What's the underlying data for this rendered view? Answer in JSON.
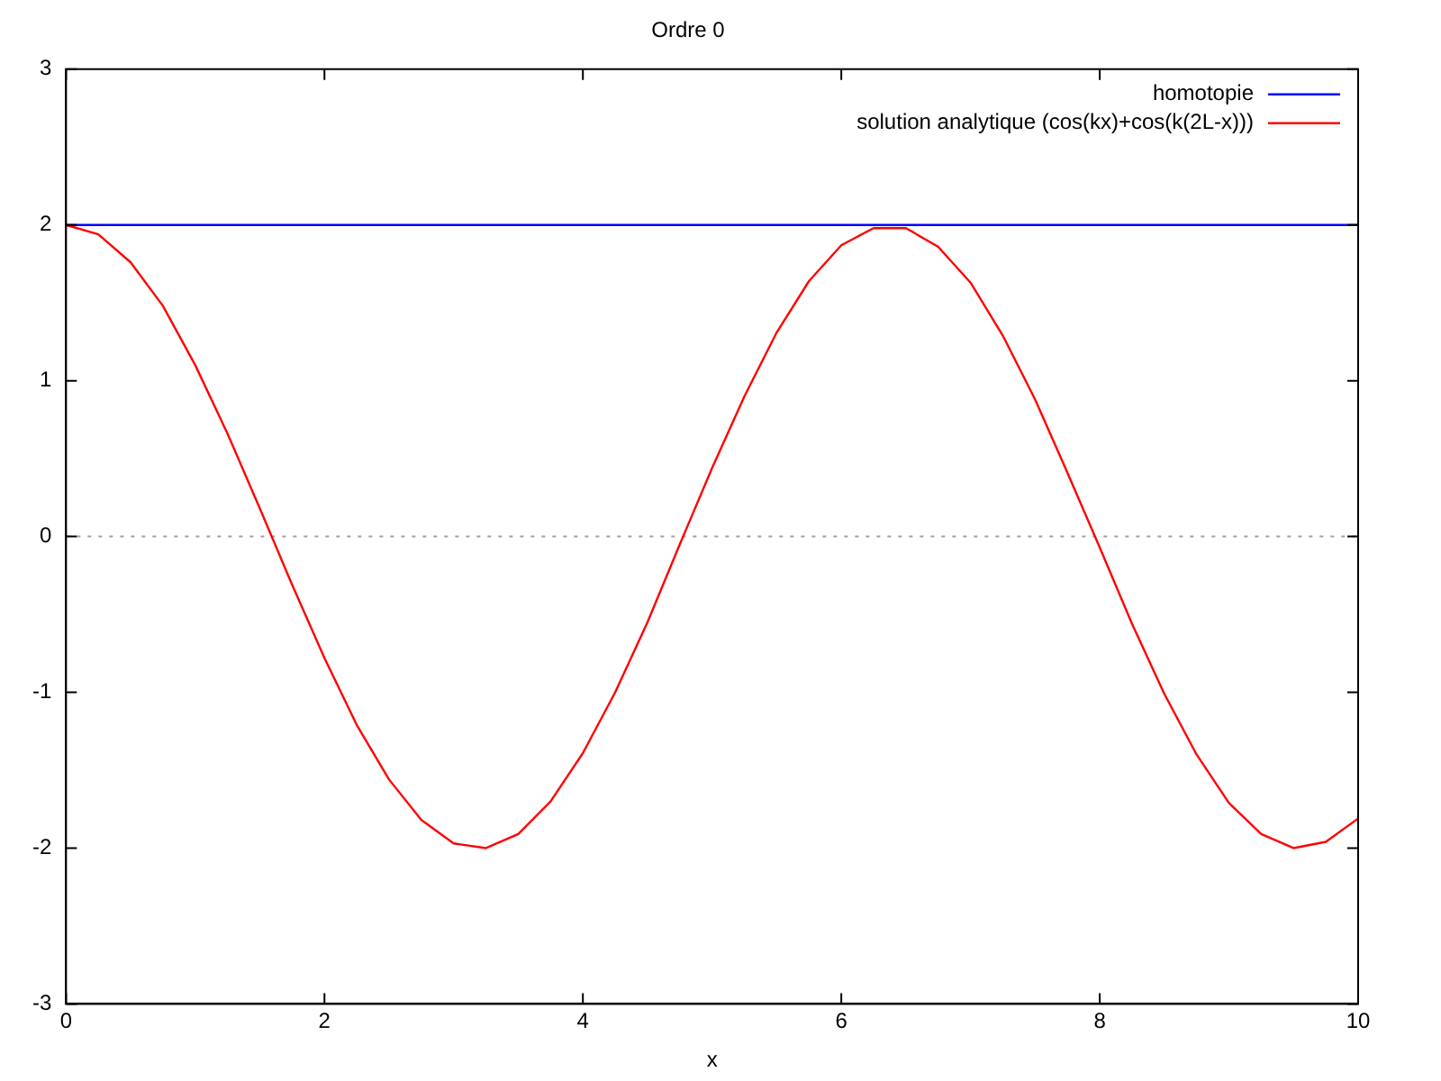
{
  "chart_data": {
    "type": "line",
    "title": "Ordre 0",
    "xlabel": "x",
    "xlim": [
      0,
      10
    ],
    "xticks": [
      0,
      2,
      4,
      6,
      8,
      10
    ],
    "ylim": [
      -3,
      3
    ],
    "yticks": [
      -3,
      -2,
      -1,
      0,
      1,
      2,
      3
    ],
    "grid": false,
    "legend": "top right",
    "marker": "none",
    "line_style": "solid",
    "ref_lines": [
      {
        "axis": "y",
        "value": 0,
        "color": "#a0a0a0",
        "line_style": "dotted"
      }
    ],
    "series": [
      {
        "name": "homotopie",
        "color": "#0000ff",
        "x": [
          0,
          10
        ],
        "values": [
          2,
          2
        ]
      },
      {
        "name": "solution analytique (cos(kx)+cos(k(2L-x)))",
        "color": "#ff0000",
        "x": [
          0,
          0.25,
          0.5,
          0.75,
          1,
          1.25,
          1.5,
          1.75,
          2,
          2.25,
          2.5,
          2.75,
          3,
          3.25,
          3.5,
          3.75,
          4,
          4.25,
          4.5,
          4.75,
          5,
          5.25,
          5.5,
          5.75,
          6,
          6.25,
          6.5,
          6.75,
          7,
          7.25,
          7.5,
          7.75,
          8,
          8.25,
          8.5,
          8.75,
          9,
          9.25,
          9.5,
          9.75,
          10
        ],
        "values": [
          2,
          1.94,
          1.76,
          1.48,
          1.1,
          0.66,
          0.18,
          -0.31,
          -0.78,
          -1.21,
          -1.56,
          -1.82,
          -1.97,
          -2,
          -1.91,
          -1.7,
          -1.39,
          -1,
          -0.55,
          -0.05,
          0.44,
          0.9,
          1.31,
          1.64,
          1.87,
          1.98,
          1.98,
          1.86,
          1.63,
          1.29,
          0.88,
          0.41,
          -0.07,
          -0.56,
          -1.01,
          -1.4,
          -1.71,
          -1.91,
          -2,
          -1.96,
          -1.81
        ]
      }
    ]
  }
}
